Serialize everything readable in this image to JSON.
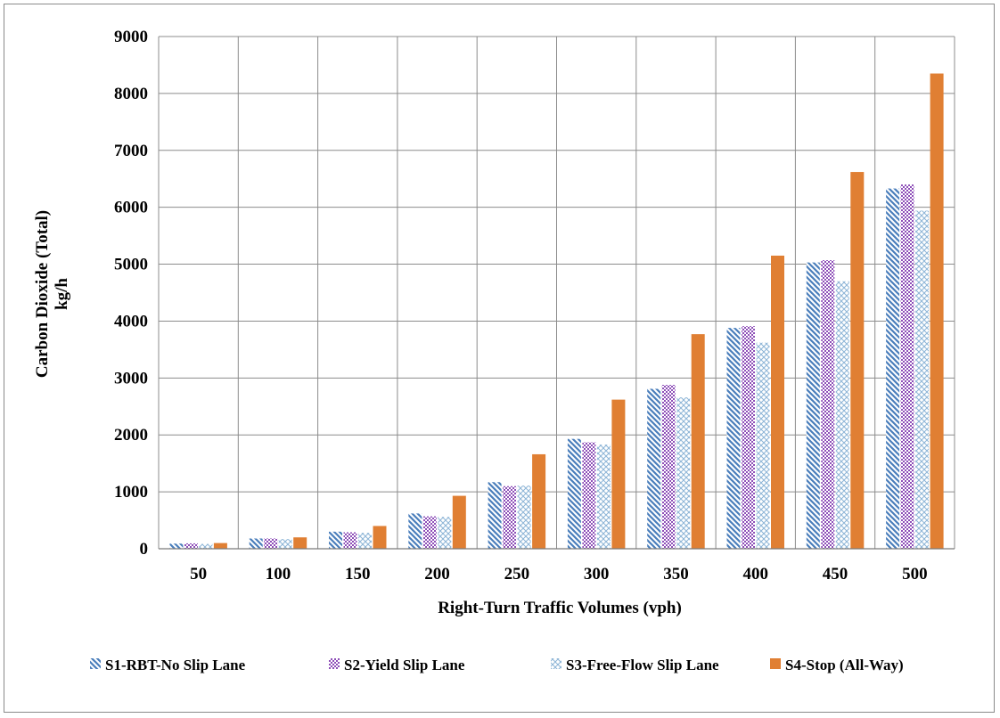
{
  "chart_data": {
    "type": "bar",
    "title": "",
    "xlabel": "Right-Turn Traffic Volumes (vph)",
    "ylabel_line1": "Carbon Dioxide (Total)",
    "ylabel_line2": "kg/h",
    "ylim": [
      0,
      9000
    ],
    "yticks": [
      0,
      1000,
      2000,
      3000,
      4000,
      5000,
      6000,
      7000,
      8000,
      9000
    ],
    "grid": true,
    "legend_position": "bottom",
    "categories": [
      "50",
      "100",
      "150",
      "200",
      "250",
      "300",
      "350",
      "400",
      "450",
      "500"
    ],
    "series": [
      {
        "name": "S1-RBT-No Slip Lane",
        "pattern": "diagonal-stripes",
        "color": "#4a7ebb",
        "values": [
          90,
          180,
          300,
          620,
          1170,
          1930,
          2810,
          3880,
          5030,
          6330
        ]
      },
      {
        "name": "S2-Yield Slip Lane",
        "pattern": "checkered",
        "color": "#8e4fb8",
        "values": [
          95,
          180,
          290,
          570,
          1100,
          1870,
          2880,
          3910,
          5070,
          6400
        ]
      },
      {
        "name": "S3-Free-Flow Slip Lane",
        "pattern": "diamond-lattice",
        "color": "#8cb4d6",
        "values": [
          85,
          170,
          280,
          560,
          1110,
          1830,
          2660,
          3620,
          4700,
          5940
        ]
      },
      {
        "name": "S4-Stop (All-Way)",
        "pattern": "solid",
        "color": "#e07f33",
        "values": [
          100,
          200,
          400,
          930,
          1660,
          2620,
          3770,
          5150,
          6620,
          8350
        ]
      }
    ]
  }
}
